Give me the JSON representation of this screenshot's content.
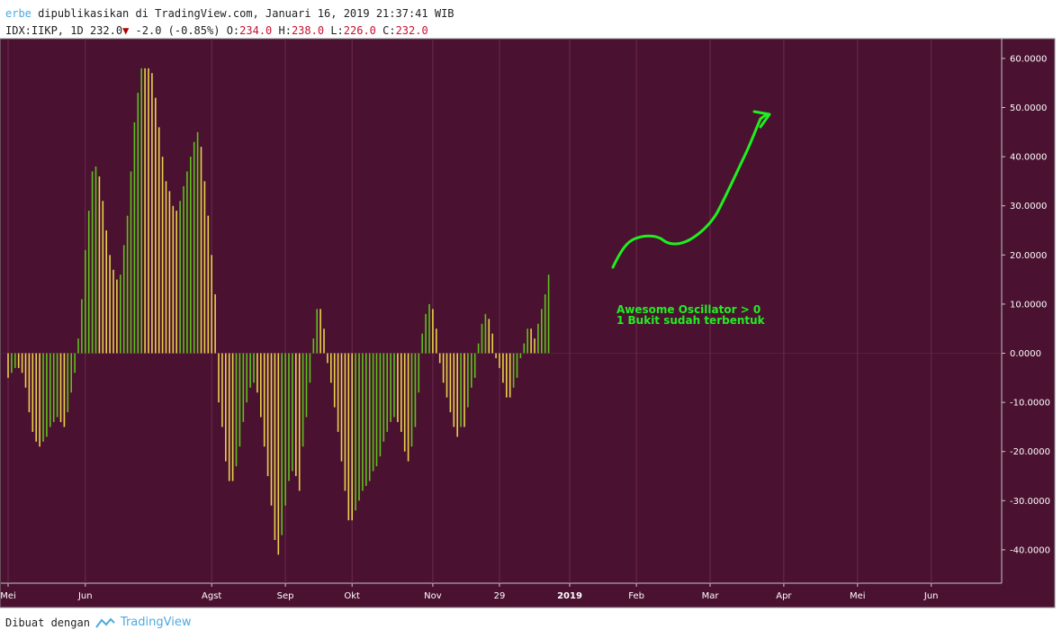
{
  "header": {
    "user": "erbe",
    "published": "dipublikasikan di TradingView.com, Januari 16, 2019 21:37:41 WIB",
    "symbol": "IDX:IIKP, 1D",
    "last": "232.0",
    "arrow": "▼",
    "change": "-2.0 (-0.85%)",
    "o_label": "O:",
    "o_value": "234.0",
    "h_label": "H:",
    "h_value": "238.0",
    "l_label": "L:",
    "l_value": "226.0",
    "c_label": "C:",
    "c_value": "232.0"
  },
  "footer": {
    "made_with": "Dibuat dengan",
    "brand": "TradingView"
  },
  "colors": {
    "background": "#4a1130",
    "grid": "#6e2a52",
    "up": "#5cc21a",
    "down": "#e8d24a",
    "annotation": "#22ee22"
  },
  "annotation": {
    "line1": "Awesome Oscillator > 0",
    "line2": "1 Bukit sudah terbentuk"
  },
  "chart_data": {
    "type": "bar",
    "title": "",
    "indicator": "Awesome Oscillator",
    "y_ticks": [
      "60.0000",
      "50.0000",
      "40.0000",
      "30.0000",
      "20.0000",
      "10.0000",
      "0.0000",
      "-10.0000",
      "-20.0000",
      "-30.0000",
      "-40.0000"
    ],
    "y_tick_values": [
      60,
      50,
      40,
      30,
      20,
      10,
      0,
      -10,
      -20,
      -30,
      -40
    ],
    "ylim": [
      -46,
      64
    ],
    "x_labels": [
      "Mei",
      "Jun",
      "Agst",
      "Sep",
      "Okt",
      "Nov",
      "29",
      "2019",
      "Feb",
      "Mar",
      "Apr",
      "Mei",
      "Jun"
    ],
    "x_label_bold": [
      "2019"
    ],
    "x_label_bar_index": [
      0,
      22,
      58,
      79,
      98,
      121,
      140,
      160,
      179,
      200,
      221,
      242,
      263
    ],
    "grid": true,
    "values": [
      -5,
      -4,
      -3,
      -3,
      -4,
      -7,
      -12,
      -16,
      -18,
      -19,
      -18,
      -17,
      -15,
      -14,
      -13,
      -14,
      -15,
      -12,
      -8,
      -4,
      3,
      11,
      21,
      29,
      37,
      38,
      36,
      31,
      25,
      20,
      17,
      15,
      16,
      22,
      28,
      37,
      47,
      53,
      58,
      58,
      58,
      57,
      52,
      46,
      40,
      35,
      33,
      30,
      29,
      31,
      34,
      37,
      40,
      43,
      45,
      42,
      35,
      28,
      20,
      12,
      -10,
      -15,
      -22,
      -26,
      -26,
      -23,
      -19,
      -14,
      -10,
      -7,
      -6,
      -8,
      -13,
      -19,
      -25,
      -31,
      -38,
      -41,
      -37,
      -31,
      -26,
      -24,
      -25,
      -28,
      -19,
      -13,
      -6,
      3,
      9,
      9,
      5,
      -2,
      -6,
      -11,
      -16,
      -22,
      -28,
      -34,
      -34,
      -32,
      -30,
      -28,
      -27,
      -26,
      -24,
      -23,
      -21,
      -18,
      -16,
      -14,
      -13,
      -14,
      -16,
      -20,
      -22,
      -19,
      -15,
      -8,
      4,
      8,
      10,
      9,
      5,
      -2,
      -6,
      -9,
      -12,
      -15,
      -17,
      -15,
      -15,
      -11,
      -7,
      -5,
      2,
      6,
      8,
      7,
      4,
      -1,
      -3,
      -6,
      -9,
      -9,
      -7,
      -5,
      -1,
      2,
      5,
      5,
      3,
      6,
      9,
      12,
      16
    ]
  }
}
